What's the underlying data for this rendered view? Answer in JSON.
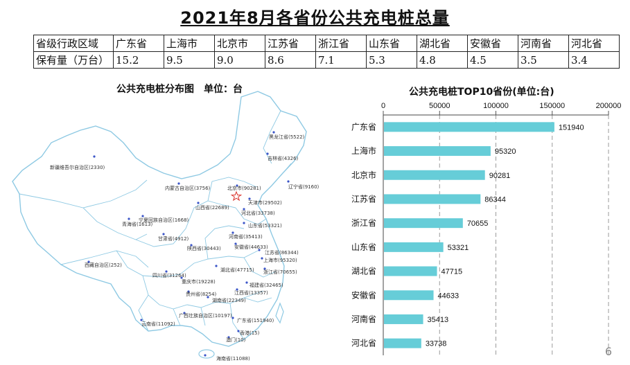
{
  "title": "2021年8月各省份公共充电桩总量",
  "summary_table": {
    "header_label": "省级行政区域",
    "value_label": "保有量（万台）",
    "provinces": [
      "广东省",
      "上海市",
      "北京市",
      "江苏省",
      "浙江省",
      "山东省",
      "湖北省",
      "安徽省",
      "河南省",
      "河北省"
    ],
    "values": [
      "15.2",
      "9.5",
      "9.0",
      "8.6",
      "7.1",
      "5.3",
      "4.8",
      "4.5",
      "3.5",
      "3.4"
    ]
  },
  "map": {
    "title": "公共充电桩分布图　单位：台",
    "labels": [
      {
        "text": "黑龙江省(5522)"
      },
      {
        "text": "吉林省(4326)"
      },
      {
        "text": "新疆维吾尔自治区(2330)"
      },
      {
        "text": "内蒙古自治区(3756)"
      },
      {
        "text": "北京市(90281)"
      },
      {
        "text": "辽宁省(9160)"
      },
      {
        "text": "天津市(29502)"
      },
      {
        "text": "山西省(22689)"
      },
      {
        "text": "河北省(33738)"
      },
      {
        "text": "青海省(1613)"
      },
      {
        "text": "宁夏回族自治区(1668)"
      },
      {
        "text": "山东省(53321)"
      },
      {
        "text": "甘肃省(4912)"
      },
      {
        "text": "河南省(35413)"
      },
      {
        "text": "陕西省(30443)"
      },
      {
        "text": "安徽省(44633)"
      },
      {
        "text": "江苏省(86344)"
      },
      {
        "text": "上海市(95320)"
      },
      {
        "text": "西藏自治区(252)"
      },
      {
        "text": "湖北省(47715)"
      },
      {
        "text": "浙江省(70655)"
      },
      {
        "text": "四川省(31264)"
      },
      {
        "text": "重庆市(19228)"
      },
      {
        "text": "福建省(32465)"
      },
      {
        "text": "江西省(13357)"
      },
      {
        "text": "贵州省(8254)"
      },
      {
        "text": "湖南省(22349)"
      },
      {
        "text": "广西壮族自治区(10197)"
      },
      {
        "text": "广东省(151940)"
      },
      {
        "text": "云南省(11092)"
      },
      {
        "text": "香港(15)"
      },
      {
        "text": "澳门(10)"
      },
      {
        "text": "海南省(11088)"
      }
    ]
  },
  "chart_data": {
    "type": "bar",
    "orientation": "horizontal",
    "title": "公共充电桩TOP10省份(单位:台)",
    "categories": [
      "广东省",
      "上海市",
      "北京市",
      "江苏省",
      "浙江省",
      "山东省",
      "湖北省",
      "安徽省",
      "河南省",
      "河北省"
    ],
    "values": [
      151940,
      95320,
      90281,
      86344,
      70655,
      53321,
      47715,
      44633,
      35413,
      33738
    ],
    "xlim": [
      0,
      200000
    ],
    "ticks": [
      "0",
      "50000",
      "100000",
      "150000",
      "200000"
    ],
    "xaxis_position": "top",
    "grid": "vertical dashed",
    "bar_color": "#66CDD8"
  },
  "page_number": "6"
}
